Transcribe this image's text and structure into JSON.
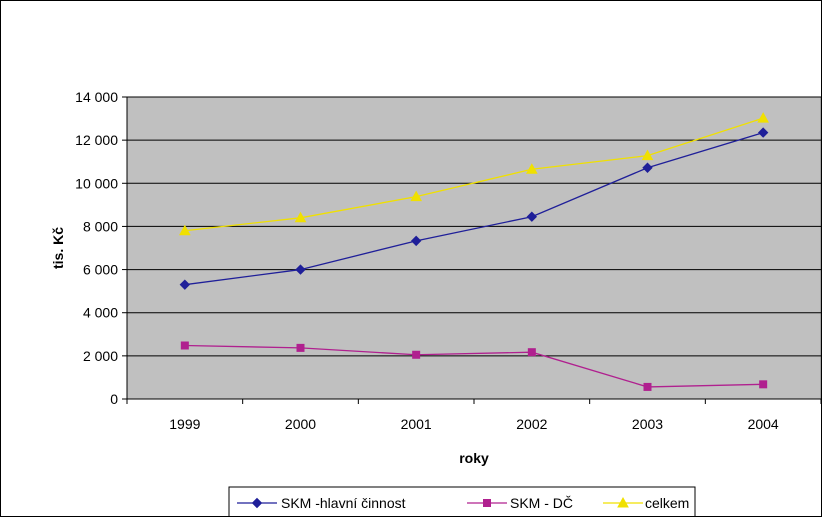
{
  "chart_data": {
    "type": "line",
    "title": "",
    "xlabel": "roky",
    "ylabel": "tis. Kč",
    "categories": [
      "1999",
      "2000",
      "2001",
      "2002",
      "2003",
      "2004"
    ],
    "ylim": [
      0,
      14000
    ],
    "yticks": [
      0,
      2000,
      4000,
      6000,
      8000,
      10000,
      12000,
      14000
    ],
    "ytick_labels": [
      "0",
      "2 000",
      "4 000",
      "6 000",
      "8 000",
      "10 000",
      "12 000",
      "14 000"
    ],
    "grid": true,
    "legend_position": "bottom",
    "plot_background": "#c0c0c0",
    "series": [
      {
        "name": "SKM -hlavní činnost",
        "color": "#1f1f99",
        "marker": "diamond",
        "values": [
          5300,
          6000,
          7330,
          8450,
          10720,
          12350
        ]
      },
      {
        "name": "SKM - DČ",
        "color": "#b0208f",
        "marker": "square",
        "values": [
          2480,
          2370,
          2050,
          2170,
          560,
          680
        ]
      },
      {
        "name": "celkem",
        "color": "#f0e000",
        "marker": "triangle",
        "values": [
          7800,
          8400,
          9380,
          10650,
          11280,
          13020
        ]
      }
    ]
  }
}
